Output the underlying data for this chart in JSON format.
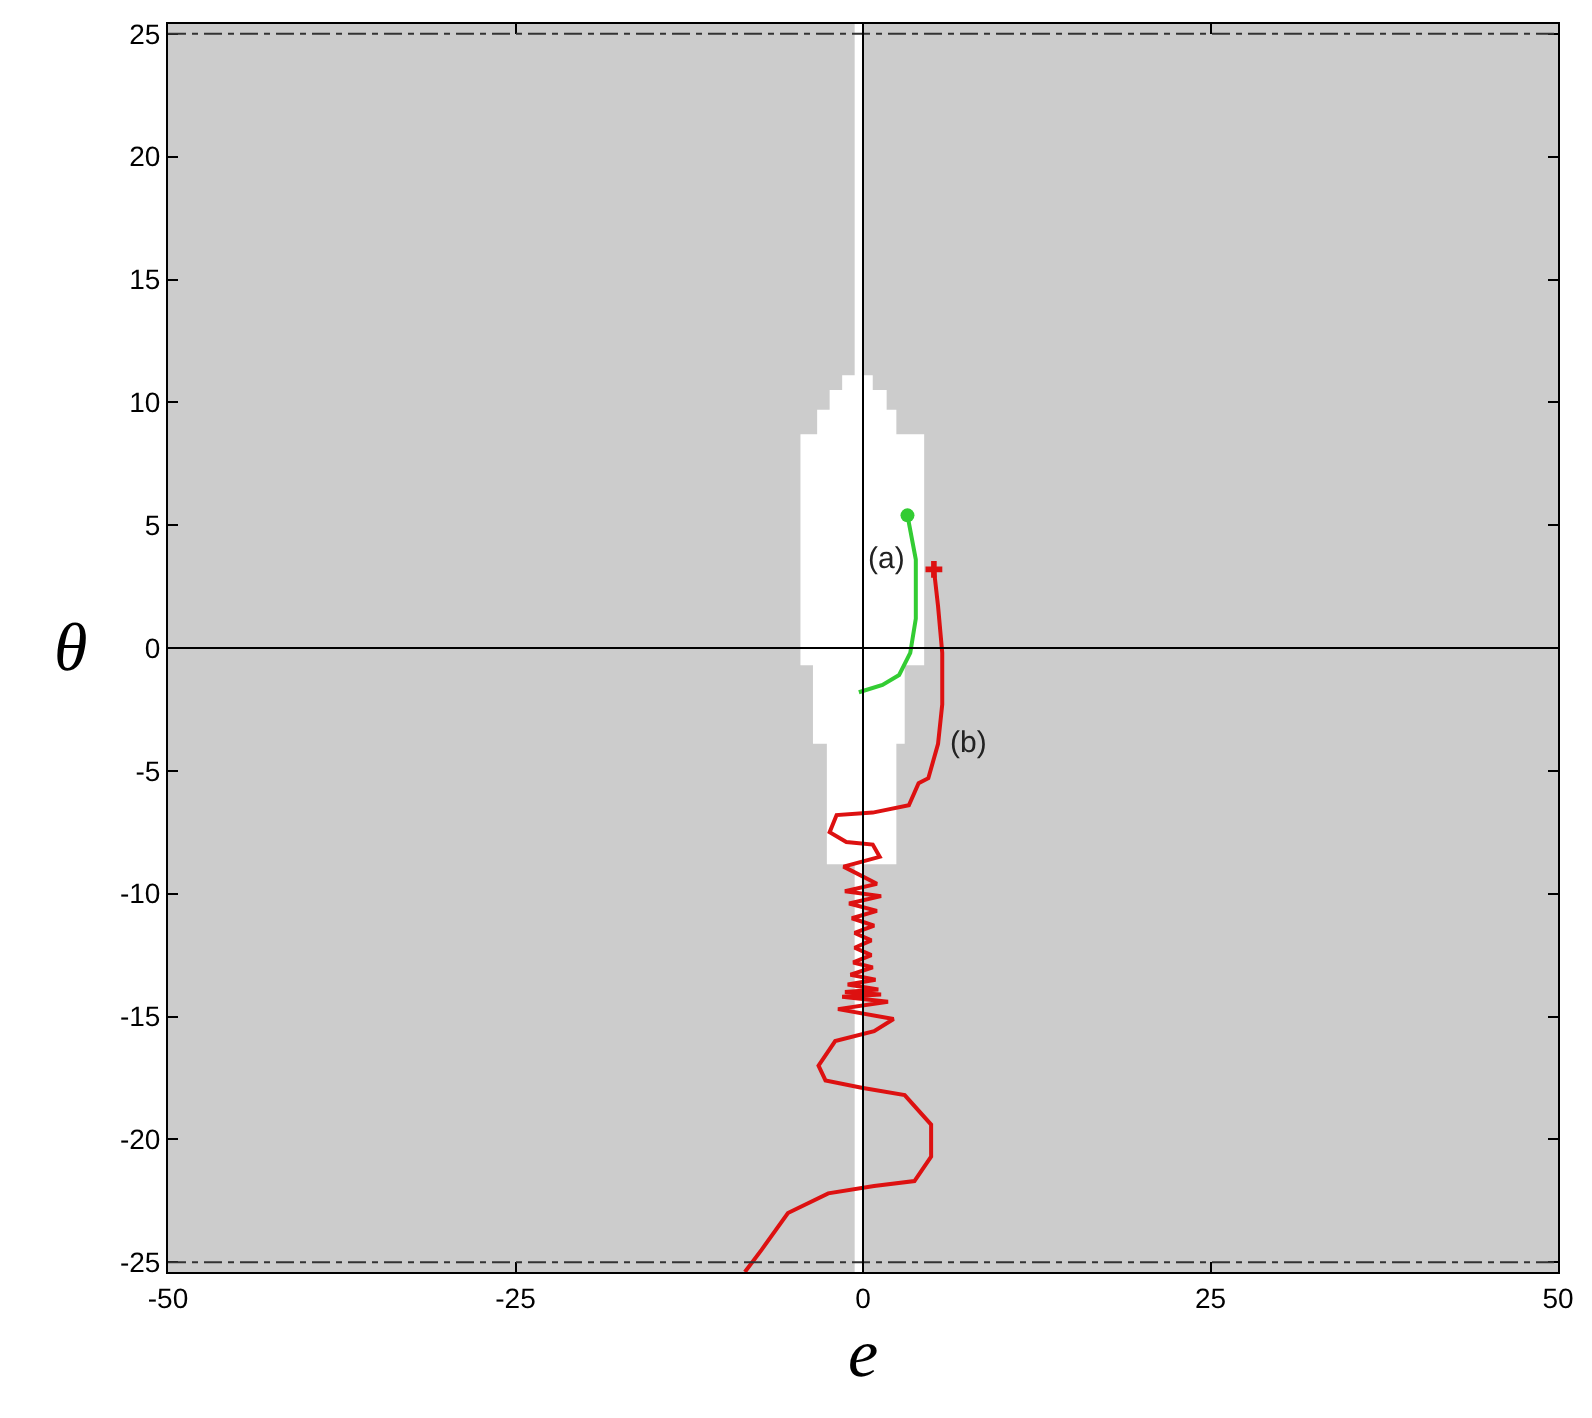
{
  "chart_data": {
    "type": "line",
    "xlabel": "e",
    "ylabel": "θ",
    "xlim": [
      -50,
      50
    ],
    "ylim": [
      -25.4,
      25.4
    ],
    "xticks": [
      -50,
      -25,
      0,
      25,
      50
    ],
    "yticks": [
      -25,
      -20,
      -15,
      -10,
      -5,
      0,
      5,
      10,
      15,
      20,
      25
    ],
    "grid": false,
    "series": [
      {
        "type": "area",
        "color": "#ffffff",
        "x": [
          -1.5,
          0.7,
          0.7,
          1.7,
          1.7,
          2.4,
          2.4,
          4.4,
          4.4,
          3.0,
          3.0,
          2.4,
          2.4,
          -2.6,
          -2.6,
          -3.6,
          -3.6,
          -4.5,
          -4.5,
          -3.3,
          -3.3,
          -2.4,
          -2.4,
          -1.5,
          -1.5
        ],
        "values": [
          11.1,
          11.1,
          10.5,
          10.5,
          9.7,
          9.7,
          8.7,
          8.7,
          -0.7,
          -0.7,
          -3.9,
          -3.9,
          -8.8,
          -8.8,
          -3.9,
          -3.9,
          -0.7,
          -0.7,
          8.7,
          8.7,
          9.7,
          9.7,
          10.5,
          10.5,
          11.1
        ]
      },
      {
        "color": "#33cc33",
        "x": [
          3.2,
          3.8,
          3.8,
          3.4,
          2.6,
          1.4,
          -0.3
        ],
        "values": [
          5.4,
          3.6,
          1.2,
          -0.2,
          -1.1,
          -1.5,
          -1.8
        ]
      },
      {
        "type": "scatter",
        "marker": "circle",
        "color": "#33cc33",
        "x": [
          3.2
        ],
        "values": [
          5.4
        ]
      },
      {
        "color": "#dd1111",
        "x": [
          5.1,
          5.4,
          5.7,
          5.7,
          5.4,
          4.7,
          4.0,
          3.3,
          0.7,
          -1.9,
          -2.4,
          -1.2,
          0.7,
          1.2,
          -1.4,
          1.0,
          -1.3,
          1.3,
          -1.0,
          1.0,
          -0.8,
          0.8,
          -0.6,
          0.6,
          -0.6,
          0.6,
          -0.7,
          0.7,
          -0.9,
          0.9,
          -1.1,
          1.1,
          -1.3,
          1.3,
          -1.5,
          1.8,
          -1.8,
          2.2,
          0.8,
          -2.0,
          -3.2,
          -2.7,
          -0.1,
          3.0,
          4.9,
          4.9,
          3.7,
          0.8,
          -2.5,
          -5.4,
          -7.3,
          -8.5
        ],
        "values": [
          3.2,
          1.7,
          -0.2,
          -2.3,
          -3.9,
          -5.3,
          -5.5,
          -6.4,
          -6.7,
          -6.8,
          -7.5,
          -7.9,
          -8.0,
          -8.5,
          -8.9,
          -9.6,
          -9.9,
          -10.1,
          -10.4,
          -10.7,
          -11.0,
          -11.3,
          -11.6,
          -11.9,
          -12.2,
          -12.5,
          -12.8,
          -13.0,
          -13.3,
          -13.5,
          -13.7,
          -13.9,
          -14.0,
          -14.1,
          -14.2,
          -14.4,
          -14.7,
          -15.1,
          -15.6,
          -16.0,
          -17.0,
          -17.6,
          -17.9,
          -18.2,
          -19.4,
          -20.7,
          -21.7,
          -21.9,
          -22.2,
          -23.0,
          -24.5,
          -25.4
        ]
      },
      {
        "type": "scatter",
        "marker": "cross",
        "color": "#dd1111",
        "x": [
          5.1
        ],
        "values": [
          3.2
        ]
      }
    ],
    "bands": [
      {
        "axis": "x",
        "from": -0.6,
        "to": 0,
        "color": "#ffffff"
      }
    ],
    "ref_lines": [
      {
        "axis": "y",
        "value": 25,
        "color": "#333333",
        "line_style": "dashdot"
      },
      {
        "axis": "y",
        "value": -25,
        "color": "#333333",
        "line_style": "dashdot"
      },
      {
        "axis": "x",
        "value": 0,
        "color": "#000000",
        "line_style": "solid"
      },
      {
        "axis": "y",
        "value": 0,
        "color": "#000000",
        "line_style": "solid"
      }
    ],
    "annotations": [
      {
        "text": "(a)",
        "x": 3.8,
        "y": 3.6
      },
      {
        "text": "(b)",
        "x": 5.4,
        "y": -3.9
      }
    ]
  }
}
